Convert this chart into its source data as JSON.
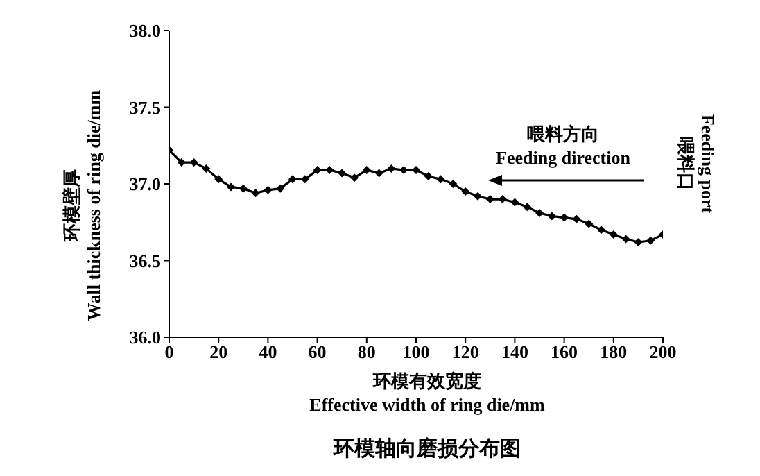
{
  "chart_data": {
    "type": "line",
    "title": "环模轴向磨损分布图",
    "xlabel": "环模有效宽度\nEffective width of ring die/mm",
    "ylabel": "环模壁厚\nWall thickness of ring die/mm",
    "annotations": [
      "喂料方向\nFeeding direction",
      "喂料口\nFeeding port"
    ],
    "x": [
      0,
      5,
      10,
      15,
      20,
      25,
      30,
      35,
      40,
      45,
      50,
      55,
      60,
      65,
      70,
      75,
      80,
      85,
      90,
      95,
      100,
      105,
      110,
      115,
      120,
      125,
      130,
      135,
      140,
      145,
      150,
      155,
      160,
      165,
      170,
      175,
      180,
      185,
      190,
      195,
      200
    ],
    "series": [
      {
        "color": "#000000",
        "values": [
          37.22,
          37.14,
          37.14,
          37.1,
          37.03,
          36.98,
          36.97,
          36.94,
          36.96,
          36.97,
          37.03,
          37.03,
          37.09,
          37.09,
          37.07,
          37.04,
          37.09,
          37.07,
          37.1,
          37.09,
          37.09,
          37.05,
          37.03,
          37.0,
          36.95,
          36.92,
          36.9,
          36.9,
          36.88,
          36.85,
          36.81,
          36.79,
          36.78,
          36.77,
          36.74,
          36.7,
          36.67,
          36.64,
          36.62,
          36.63,
          36.67
        ]
      }
    ],
    "xlim": [
      0,
      200
    ],
    "xticks": [
      0,
      20,
      40,
      60,
      80,
      100,
      120,
      140,
      160,
      180,
      200
    ],
    "ylim": [
      36,
      38
    ],
    "yticks": [
      {
        "value": 36,
        "label": "36.0"
      },
      {
        "value": 36.5,
        "label": "36.5"
      },
      {
        "value": 37,
        "label": "37.0"
      },
      {
        "value": 37.5,
        "label": "37.5"
      },
      {
        "value": 38,
        "label": "38.0"
      }
    ],
    "marker": "diamond",
    "line_style": "solid",
    "grid": false,
    "legend": false
  }
}
